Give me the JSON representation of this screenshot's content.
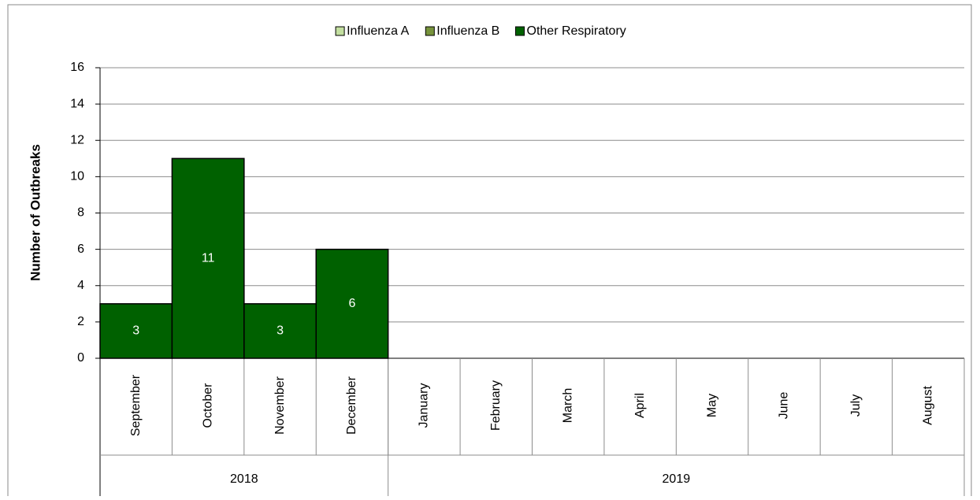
{
  "chart_data": {
    "type": "stacked-bar",
    "y_label": "Number of Outbreaks",
    "categories": [
      "September",
      "October",
      "November",
      "December",
      "January",
      "February",
      "March",
      "April",
      "May",
      "June",
      "July",
      "August"
    ],
    "groups": [
      {
        "name": "2018",
        "count": 4
      },
      {
        "name": "2019",
        "count": 8
      }
    ],
    "series": [
      {
        "name": "Influenza A",
        "color": "#c3dfa0",
        "values": [
          0,
          0,
          0,
          0,
          null,
          null,
          null,
          null,
          null,
          null,
          null,
          null
        ]
      },
      {
        "name": "Influenza B",
        "color": "#77933c",
        "values": [
          0,
          0,
          0,
          0,
          null,
          null,
          null,
          null,
          null,
          null,
          null,
          null
        ]
      },
      {
        "name": "Other Respiratory",
        "color": "#006100",
        "data_labels": true,
        "values": [
          3,
          11,
          3,
          6,
          null,
          null,
          null,
          null,
          null,
          null,
          null,
          null
        ]
      }
    ],
    "ylim": [
      0,
      16
    ],
    "yticks": [
      0,
      2,
      4,
      6,
      8,
      10,
      12,
      14,
      16
    ],
    "grid": true,
    "legend": "top"
  }
}
